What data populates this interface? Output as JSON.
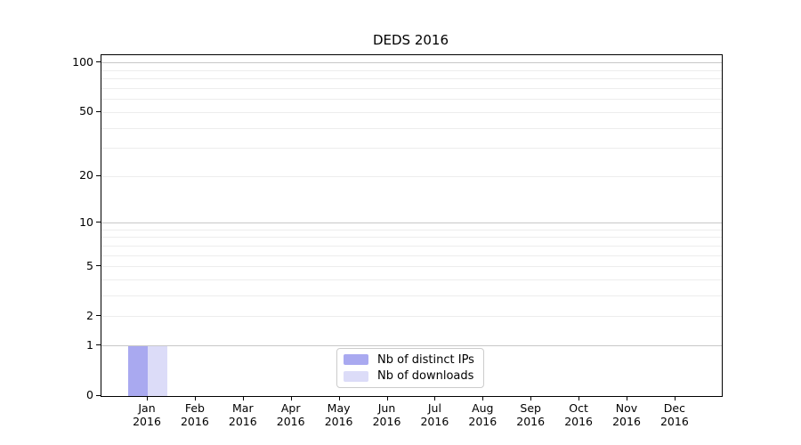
{
  "title": "DEDS 2016",
  "chart_data": {
    "type": "bar",
    "title": "DEDS 2016",
    "x_categories": [
      "Jan 2016",
      "Feb 2016",
      "Mar 2016",
      "Apr 2016",
      "May 2016",
      "Jun 2016",
      "Jul 2016",
      "Aug 2016",
      "Sep 2016",
      "Oct 2016",
      "Nov 2016",
      "Dec 2016"
    ],
    "series": [
      {
        "name": "Nb of distinct IPs",
        "color": "#a9a9f0",
        "values": [
          1,
          0,
          0,
          0,
          0,
          0,
          0,
          0,
          0,
          0,
          0,
          0
        ]
      },
      {
        "name": "Nb of downloads",
        "color": "#dcdcf8",
        "values": [
          1,
          0,
          0,
          0,
          0,
          0,
          0,
          0,
          0,
          0,
          0,
          0
        ]
      }
    ],
    "yscale": "log1p",
    "ylim": [
      0,
      112
    ],
    "y_tick_values": [
      0,
      1,
      2,
      5,
      10,
      20,
      50,
      100
    ],
    "y_decade_gridlines": [
      1,
      10,
      100
    ],
    "y_minor_gridlines": [
      2,
      3,
      4,
      5,
      6,
      7,
      8,
      9,
      20,
      30,
      40,
      50,
      60,
      70,
      80,
      90
    ],
    "grid": "horizontal",
    "legend_position": "lower-center"
  },
  "colors": {
    "decade_grid": "#c8c8c8",
    "minor_grid": "#ededed",
    "spine": "#000000",
    "background": "#ffffff",
    "distinct_ips_bar": "#a9a9f0",
    "downloads_bar": "#dcdcf8",
    "legend_border": "#cccccc"
  }
}
